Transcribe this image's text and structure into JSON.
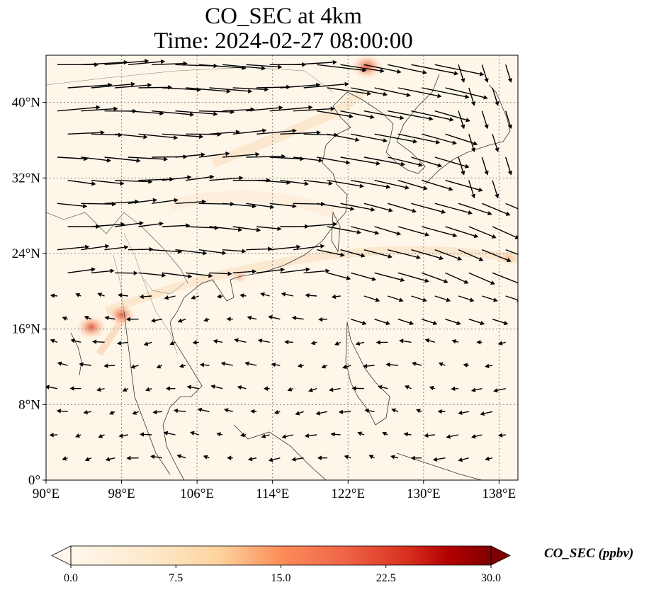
{
  "title": "CO_SEC at 4km",
  "subtitle": "Time: 2024-02-27 08:00:00",
  "map": {
    "extent_lon": [
      90,
      140
    ],
    "extent_lat": [
      0,
      45
    ],
    "background_color": "#fef6e9",
    "gridlines": "dotted grey",
    "x_ticks": [
      "90°E",
      "98°E",
      "106°E",
      "114°E",
      "122°E",
      "130°E",
      "138°E"
    ],
    "x_tick_values": [
      90,
      98,
      106,
      114,
      122,
      130,
      138
    ],
    "y_ticks": [
      "0°",
      "8°N",
      "16°N",
      "24°N",
      "32°N",
      "40°N"
    ],
    "y_tick_values": [
      0,
      8,
      16,
      24,
      32,
      40
    ],
    "hotspots": [
      {
        "lon": 124.0,
        "lat": 43.8,
        "value": 16
      },
      {
        "lon": 94.8,
        "lat": 16.2,
        "value": 15
      },
      {
        "lon": 98.0,
        "lat": 17.5,
        "value": 13
      },
      {
        "lon": 110.5,
        "lat": 21.5,
        "value": 5
      },
      {
        "lon": 139.0,
        "lat": 23.5,
        "value": 6
      }
    ],
    "wind_vectors": "black arrows showing wind direction; westerlies north of ~20°N, easterlies south"
  },
  "colorbar": {
    "label": "CO_SEC (ppbv)",
    "min": 0.0,
    "max": 30.0,
    "ticks": [
      "0.0",
      "7.5",
      "15.0",
      "22.5",
      "30.0"
    ],
    "tick_values": [
      0,
      7.5,
      15,
      22.5,
      30
    ],
    "colormap": "OrRd",
    "extend": "both"
  }
}
